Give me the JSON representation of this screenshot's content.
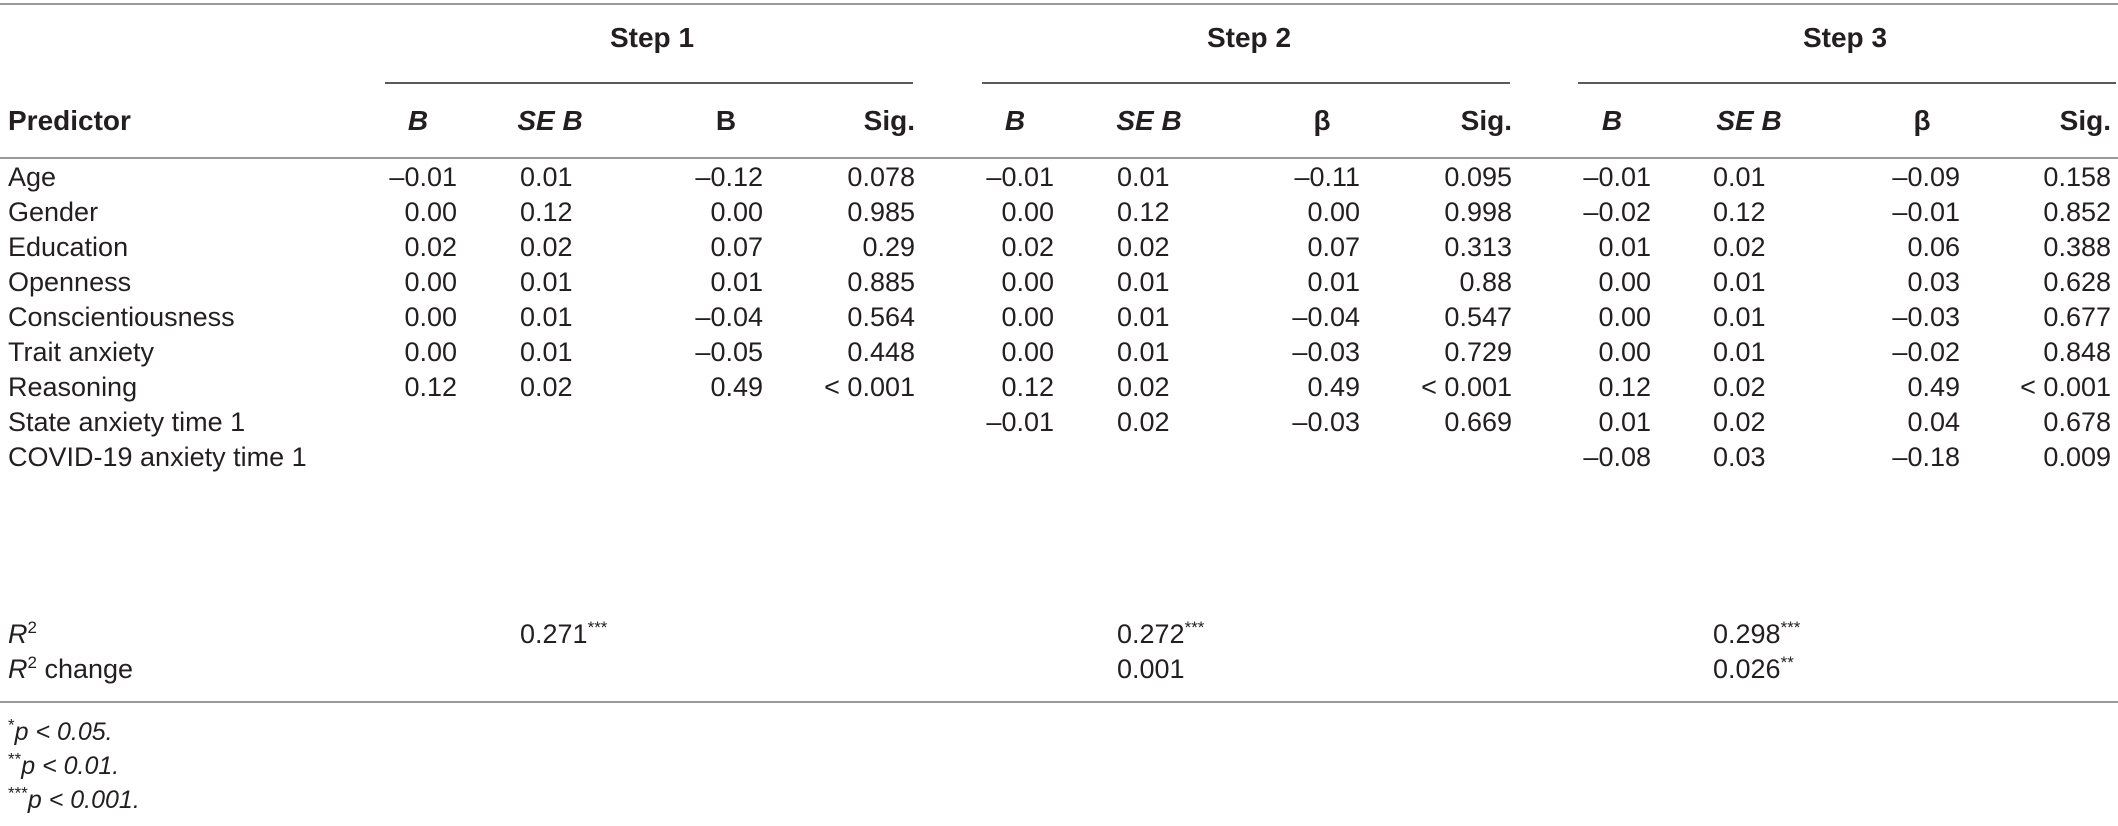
{
  "steps": [
    "Step 1",
    "Step 2",
    "Step 3"
  ],
  "columns": {
    "predictor": "Predictor",
    "step1": [
      "B",
      "SE B",
      "B",
      "Sig."
    ],
    "step2": [
      "B",
      "SE B",
      "β",
      "Sig."
    ],
    "step3": [
      "B",
      "SE B",
      "β",
      "Sig."
    ]
  },
  "rows": [
    {
      "label": "Age",
      "values": [
        "–0.01",
        "0.01",
        "–0.12",
        "0.078",
        "–0.01",
        "0.01",
        "–0.11",
        "0.095",
        "–0.01",
        "0.01",
        "–0.09",
        "0.158"
      ]
    },
    {
      "label": "Gender",
      "values": [
        "0.00",
        "0.12",
        "0.00",
        "0.985",
        "0.00",
        "0.12",
        "0.00",
        "0.998",
        "–0.02",
        "0.12",
        "–0.01",
        "0.852"
      ]
    },
    {
      "label": "Education",
      "values": [
        "0.02",
        "0.02",
        "0.07",
        "0.29",
        "0.02",
        "0.02",
        "0.07",
        "0.313",
        "0.01",
        "0.02",
        "0.06",
        "0.388"
      ]
    },
    {
      "label": "Openness",
      "values": [
        "0.00",
        "0.01",
        "0.01",
        "0.885",
        "0.00",
        "0.01",
        "0.01",
        "0.88",
        "0.00",
        "0.01",
        "0.03",
        "0.628"
      ]
    },
    {
      "label": "Conscientiousness",
      "values": [
        "0.00",
        "0.01",
        "–0.04",
        "0.564",
        "0.00",
        "0.01",
        "–0.04",
        "0.547",
        "0.00",
        "0.01",
        "–0.03",
        "0.677"
      ]
    },
    {
      "label": "Trait anxiety",
      "values": [
        "0.00",
        "0.01",
        "–0.05",
        "0.448",
        "0.00",
        "0.01",
        "–0.03",
        "0.729",
        "0.00",
        "0.01",
        "–0.02",
        "0.848"
      ]
    },
    {
      "label": "Reasoning",
      "values": [
        "0.12",
        "0.02",
        "0.49",
        "< 0.001",
        "0.12",
        "0.02",
        "0.49",
        "< 0.001",
        "0.12",
        "0.02",
        "0.49",
        "< 0.001"
      ]
    },
    {
      "label": "State anxiety time 1",
      "values": [
        "",
        "",
        "",
        "",
        "–0.01",
        "0.02",
        "–0.03",
        "0.669",
        "0.01",
        "0.02",
        "0.04",
        "0.678"
      ]
    },
    {
      "label": "COVID-19 anxiety time 1",
      "values": [
        "",
        "",
        "",
        "",
        "",
        "",
        "",
        "",
        "–0.08",
        "0.03",
        "–0.18",
        "0.009"
      ]
    }
  ],
  "r2": {
    "label_base": "R",
    "label_sup": "2",
    "values": [
      "0.271***",
      "0.272***",
      "0.298***"
    ]
  },
  "r2_change": {
    "label_base": "R",
    "label_sup": "2",
    "label_suffix": " change",
    "values": [
      "",
      "0.001",
      "0.026**"
    ]
  },
  "footnotes": [
    {
      "stars": "*",
      "text": "p < 0.05."
    },
    {
      "stars": "**",
      "text": "p < 0.01."
    },
    {
      "stars": "***",
      "text": "p < 0.001."
    }
  ]
}
